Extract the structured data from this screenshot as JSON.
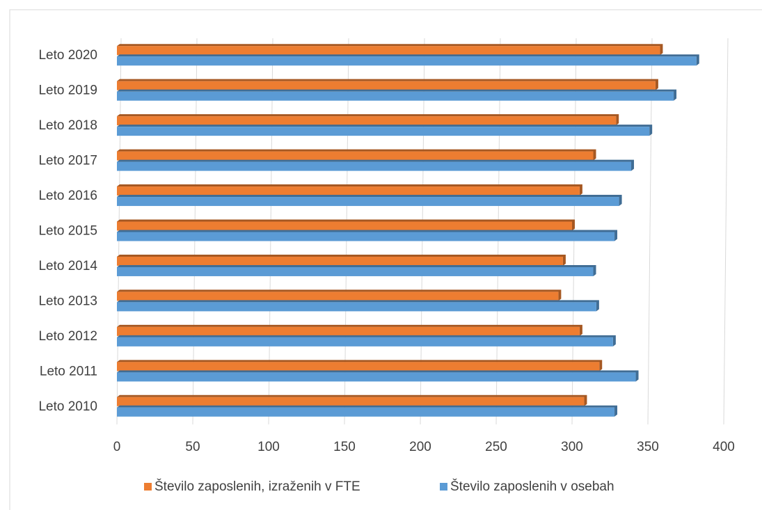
{
  "chart_data": {
    "type": "bar",
    "orientation": "horizontal",
    "categories": [
      "Leto 2010",
      "Leto 2011",
      "Leto 2012",
      "Leto 2013",
      "Leto 2014",
      "Leto 2015",
      "Leto 2016",
      "Leto 2017",
      "Leto 2018",
      "Leto 2019",
      "Leto 2020"
    ],
    "series": [
      {
        "name": "Število zaposlenih, izraženih v FTE",
        "color": "#ed7d31",
        "values": [
          308,
          318,
          305,
          291,
          294,
          300,
          305,
          314,
          329,
          355,
          358
        ]
      },
      {
        "name": "Število zaposlenih v osebah",
        "color": "#5b9bd5",
        "values": [
          328,
          342,
          327,
          316,
          314,
          328,
          331,
          339,
          351,
          367,
          382
        ]
      }
    ],
    "xlim": [
      0,
      400
    ],
    "xticks": [
      0,
      50,
      100,
      150,
      200,
      250,
      300,
      350,
      400
    ],
    "grid": true,
    "legend": "bottom"
  }
}
